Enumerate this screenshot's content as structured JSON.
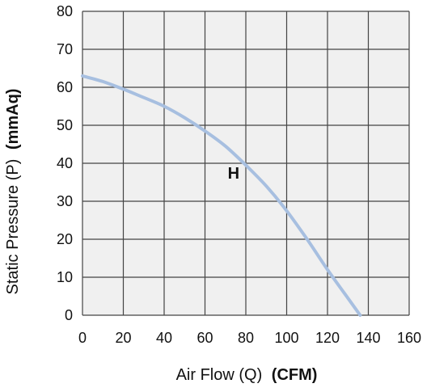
{
  "chart_data": {
    "type": "line",
    "title": "",
    "xlabel": {
      "text": "Air Flow (Q)",
      "unit": "(CFM)"
    },
    "ylabel": {
      "text": "Static Pressure (P)",
      "unit": "(mmAq)"
    },
    "xlim": [
      0,
      160
    ],
    "ylim": [
      0,
      80
    ],
    "x_ticks": [
      "0",
      "20",
      "40",
      "60",
      "80",
      "100",
      "120",
      "140",
      "160"
    ],
    "y_ticks": [
      "0",
      "10",
      "20",
      "30",
      "40",
      "50",
      "60",
      "70",
      "80"
    ],
    "grid": true,
    "series": [
      {
        "name": "H",
        "color": "#a7bfe0",
        "x": [
          0,
          10,
          20,
          30,
          40,
          50,
          60,
          70,
          80,
          90,
          100,
          110,
          120,
          130,
          136
        ],
        "y": [
          63,
          61.5,
          59.5,
          57.3,
          55,
          52,
          48.5,
          44.5,
          39.5,
          34,
          27.5,
          20,
          12,
          4.5,
          0
        ]
      }
    ],
    "annotations": [
      {
        "text": "H",
        "x": 74,
        "y": 36
      }
    ],
    "plot_background": "#f0f0f0",
    "grid_color": "#444444"
  }
}
